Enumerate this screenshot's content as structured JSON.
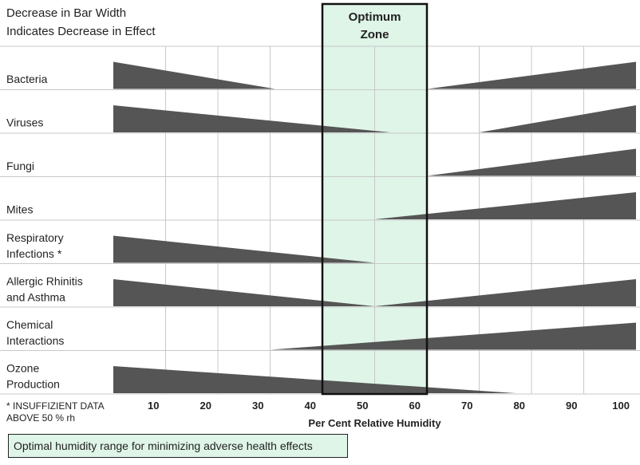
{
  "header": {
    "line1": "Decrease in Bar Width",
    "line2": "Indicates Decrease in Effect"
  },
  "optimum_zone": {
    "label_line1": "Optimum",
    "label_line2": "Zone",
    "range": [
      40,
      60
    ],
    "fill": "#dff5e8",
    "border": "#111111"
  },
  "footnote": {
    "line1": "* INSUFFIZIENT DATA",
    "line2": "ABOVE  50 % rh"
  },
  "caption": "Optimal humidity range for minimizing adverse health effects",
  "chart_data": {
    "type": "bar",
    "x_ticks": [
      "10",
      "20",
      "30",
      "40",
      "50",
      "60",
      "70",
      "80",
      "90",
      "100"
    ],
    "xlabel": "Per Cent Relative Humidity",
    "bar_color": "#555555",
    "rows": [
      {
        "label": [
          "Bacteria"
        ],
        "shapes": [
          {
            "x": [
              0,
              31
            ],
            "w": [
              1,
              0
            ]
          },
          {
            "x": [
              60,
              100
            ],
            "w": [
              0,
              1
            ]
          }
        ]
      },
      {
        "label": [
          "Viruses"
        ],
        "shapes": [
          {
            "x": [
              0,
              53
            ],
            "w": [
              1,
              0
            ]
          },
          {
            "x": [
              70,
              100
            ],
            "w": [
              0,
              1
            ]
          }
        ]
      },
      {
        "label": [
          "Fungi"
        ],
        "shapes": [
          {
            "x": [
              60,
              100
            ],
            "w": [
              0,
              1
            ]
          }
        ]
      },
      {
        "label": [
          "Mites"
        ],
        "shapes": [
          {
            "x": [
              50,
              100
            ],
            "w": [
              0,
              1
            ]
          }
        ]
      },
      {
        "label": [
          "Respiratory",
          "Infections *"
        ],
        "shapes": [
          {
            "x": [
              0,
              50
            ],
            "w": [
              1,
              0
            ]
          }
        ]
      },
      {
        "label": [
          "Allergic Rhinitis",
          "and Asthma"
        ],
        "shapes": [
          {
            "x": [
              0,
              50
            ],
            "w": [
              1,
              0
            ]
          },
          {
            "x": [
              50,
              100
            ],
            "w": [
              0,
              1
            ]
          }
        ]
      },
      {
        "label": [
          "Chemical",
          "Interactions"
        ],
        "shapes": [
          {
            "x": [
              30,
              100
            ],
            "w": [
              0,
              1
            ]
          }
        ]
      },
      {
        "label": [
          "Ozone",
          "Production"
        ],
        "shapes": [
          {
            "x": [
              0,
              77
            ],
            "w": [
              1,
              0
            ]
          }
        ]
      }
    ]
  }
}
